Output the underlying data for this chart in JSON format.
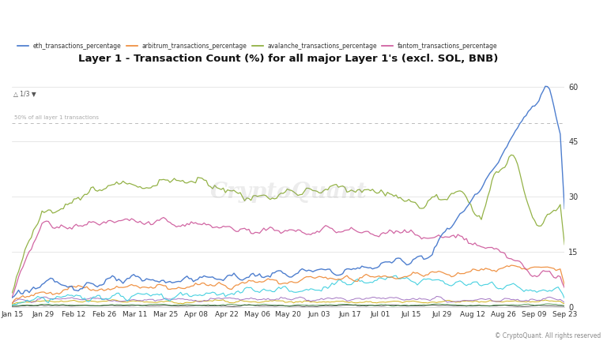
{
  "title": "Layer 1 - Transaction Count (%) for all major Layer 1's (excl. SOL, BNB)",
  "background_color": "#ffffff",
  "plot_bg_color": "#ffffff",
  "text_color": "#333333",
  "grid_color": "#cccccc",
  "watermark": "CryptoQuant",
  "source": "© CryptoQuant. All rights reserved",
  "ylim": [
    0,
    65
  ],
  "yticks": [
    0,
    15,
    30,
    45,
    60
  ],
  "reference_line_y": 50,
  "reference_label": "50% of all layer 1 transactions",
  "x_labels": [
    "Jan 15",
    "Jan 29",
    "Feb 12",
    "Feb 26",
    "Mar 11",
    "Mar 25",
    "Apr 08",
    "Apr 22",
    "May 06",
    "May 20",
    "Jun 03",
    "Jun 17",
    "Jul 01",
    "Jul 15",
    "Jul 29",
    "Aug 12",
    "Aug 26",
    "Sep 09",
    "Sep 23"
  ],
  "legend_items": [
    {
      "label": "eth_transactions_percentage",
      "color": "#4477cc"
    },
    {
      "label": "arbitrum_transactions_percentage",
      "color": "#ee8833"
    },
    {
      "label": "avalanche_transactions_percentage",
      "color": "#88aa33"
    },
    {
      "label": "fantom_transactions_percentage",
      "color": "#cc5599"
    }
  ],
  "series_colors": {
    "eth": "#4477cc",
    "avalanche": "#88aa33",
    "fantom": "#cc5599",
    "arbitrum": "#ee8833",
    "cyan_line": "#33ccdd",
    "purple_line": "#9966bb",
    "yellow_line": "#ccaa00",
    "dark_green": "#227722",
    "black_line": "#111111"
  }
}
